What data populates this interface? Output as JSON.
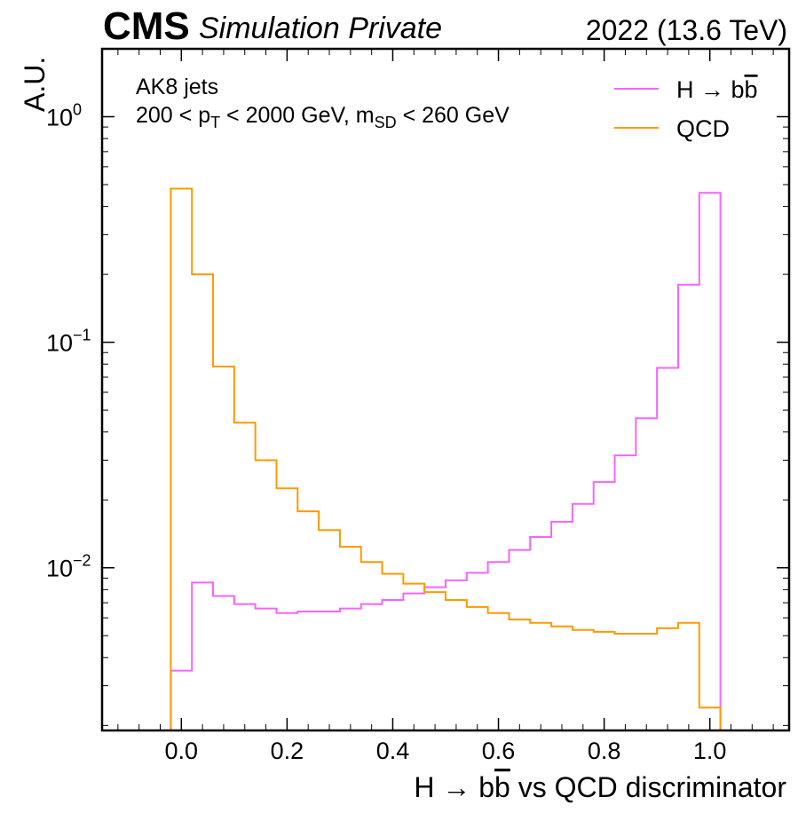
{
  "header": {
    "experiment": "CMS",
    "status": "Simulation Private",
    "lumi": "2022 (13.6 TeV)"
  },
  "annotations": {
    "line1": "AK8 jets",
    "line2_prefix": "200 < p",
    "line2_sub1": "T",
    "line2_mid": " < 2000 GeV, m",
    "line2_sub2": "SD",
    "line2_suffix": " < 260 GeV"
  },
  "chart_data": {
    "type": "step-histogram",
    "xlabel_prefix": "H → b",
    "xlabel_bbar": "b",
    "xlabel_suffix": " vs QCD discriminator",
    "ylabel": "A.U.",
    "xlim": [
      -0.15,
      1.15
    ],
    "ylim": [
      0.0019,
      2.0
    ],
    "yscale": "log",
    "x_ticks": [
      "0.0",
      "0.2",
      "0.4",
      "0.6",
      "0.8",
      "1.0"
    ],
    "y_ticks": [
      {
        "base": "10",
        "exp": "0"
      },
      {
        "base": "10",
        "exp": "−1"
      },
      {
        "base": "10",
        "exp": "−2"
      }
    ],
    "legend_position": "top-right",
    "bin_edges": [
      -0.02,
      0.02,
      0.06,
      0.1,
      0.14,
      0.18,
      0.22,
      0.26,
      0.3,
      0.34,
      0.38,
      0.42,
      0.46,
      0.5,
      0.54,
      0.58,
      0.62,
      0.66,
      0.7,
      0.74,
      0.78,
      0.82,
      0.86,
      0.9,
      0.94,
      0.98,
      1.02
    ],
    "series": [
      {
        "name_prefix": "H → b",
        "name_bbar": "b",
        "color": "#f564ff",
        "values": [
          0.0035,
          0.0086,
          0.0075,
          0.0069,
          0.0066,
          0.0063,
          0.0064,
          0.0064,
          0.0066,
          0.0069,
          0.0072,
          0.0077,
          0.0082,
          0.0088,
          0.0095,
          0.0106,
          0.012,
          0.0137,
          0.016,
          0.0192,
          0.024,
          0.0315,
          0.046,
          0.077,
          0.18,
          0.46
        ]
      },
      {
        "name_prefix": "QCD",
        "name_bbar": "",
        "color": "#ff9900",
        "values": [
          0.48,
          0.2,
          0.078,
          0.044,
          0.03,
          0.0225,
          0.0178,
          0.0147,
          0.0124,
          0.0106,
          0.0094,
          0.0085,
          0.0078,
          0.0072,
          0.0067,
          0.0063,
          0.0059,
          0.0057,
          0.0055,
          0.0053,
          0.0052,
          0.0051,
          0.0051,
          0.0054,
          0.0057,
          0.0024
        ]
      }
    ]
  }
}
